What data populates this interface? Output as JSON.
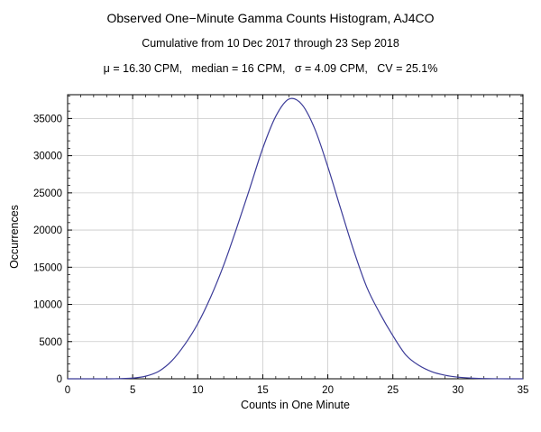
{
  "header": {
    "title": "Observed One−Minute Gamma Counts Histogram, AJ4CO",
    "subtitle": "Cumulative from 10 Dec 2017 through 23 Sep 2018",
    "stats": "μ = 16.30 CPM,   median = 16 CPM,   σ = 4.09 CPM,   CV = 25.1%"
  },
  "chart_data": {
    "type": "line",
    "title": "Observed One−Minute Gamma Counts Histogram, AJ4CO",
    "subtitle": "Cumulative from 10 Dec 2017 through 23 Sep 2018",
    "annotation": "μ = 16.30 CPM,  median = 16 CPM,  σ = 4.09 CPM,  CV = 25.1%",
    "xlabel": "Counts in One Minute",
    "ylabel": "Occurrences",
    "xlim": [
      0,
      35
    ],
    "ylim": [
      0,
      38200
    ],
    "x_ticks": [
      0,
      5,
      10,
      15,
      20,
      25,
      30,
      35
    ],
    "y_ticks": [
      0,
      5000,
      10000,
      15000,
      20000,
      25000,
      30000,
      35000
    ],
    "grid": true,
    "grid_color": "#c9c9c9",
    "line_color": "#3b3b98",
    "legend_position": "none",
    "series": [
      {
        "name": "occurrences",
        "x": [
          0,
          1,
          2,
          3,
          4,
          5,
          6,
          7,
          8,
          9,
          10,
          11,
          12,
          13,
          14,
          15,
          16,
          17,
          18,
          19,
          20,
          21,
          22,
          23,
          24,
          25,
          26,
          27,
          28,
          29,
          30,
          31,
          32,
          33,
          34,
          35
        ],
        "y": [
          0,
          0,
          0,
          0,
          20,
          90,
          350,
          1000,
          2400,
          4600,
          7400,
          11000,
          15300,
          20300,
          25600,
          31000,
          35300,
          37600,
          36900,
          33600,
          28500,
          22800,
          17200,
          12300,
          8800,
          5800,
          3200,
          1800,
          950,
          480,
          220,
          90,
          35,
          10,
          0,
          0
        ]
      }
    ]
  }
}
